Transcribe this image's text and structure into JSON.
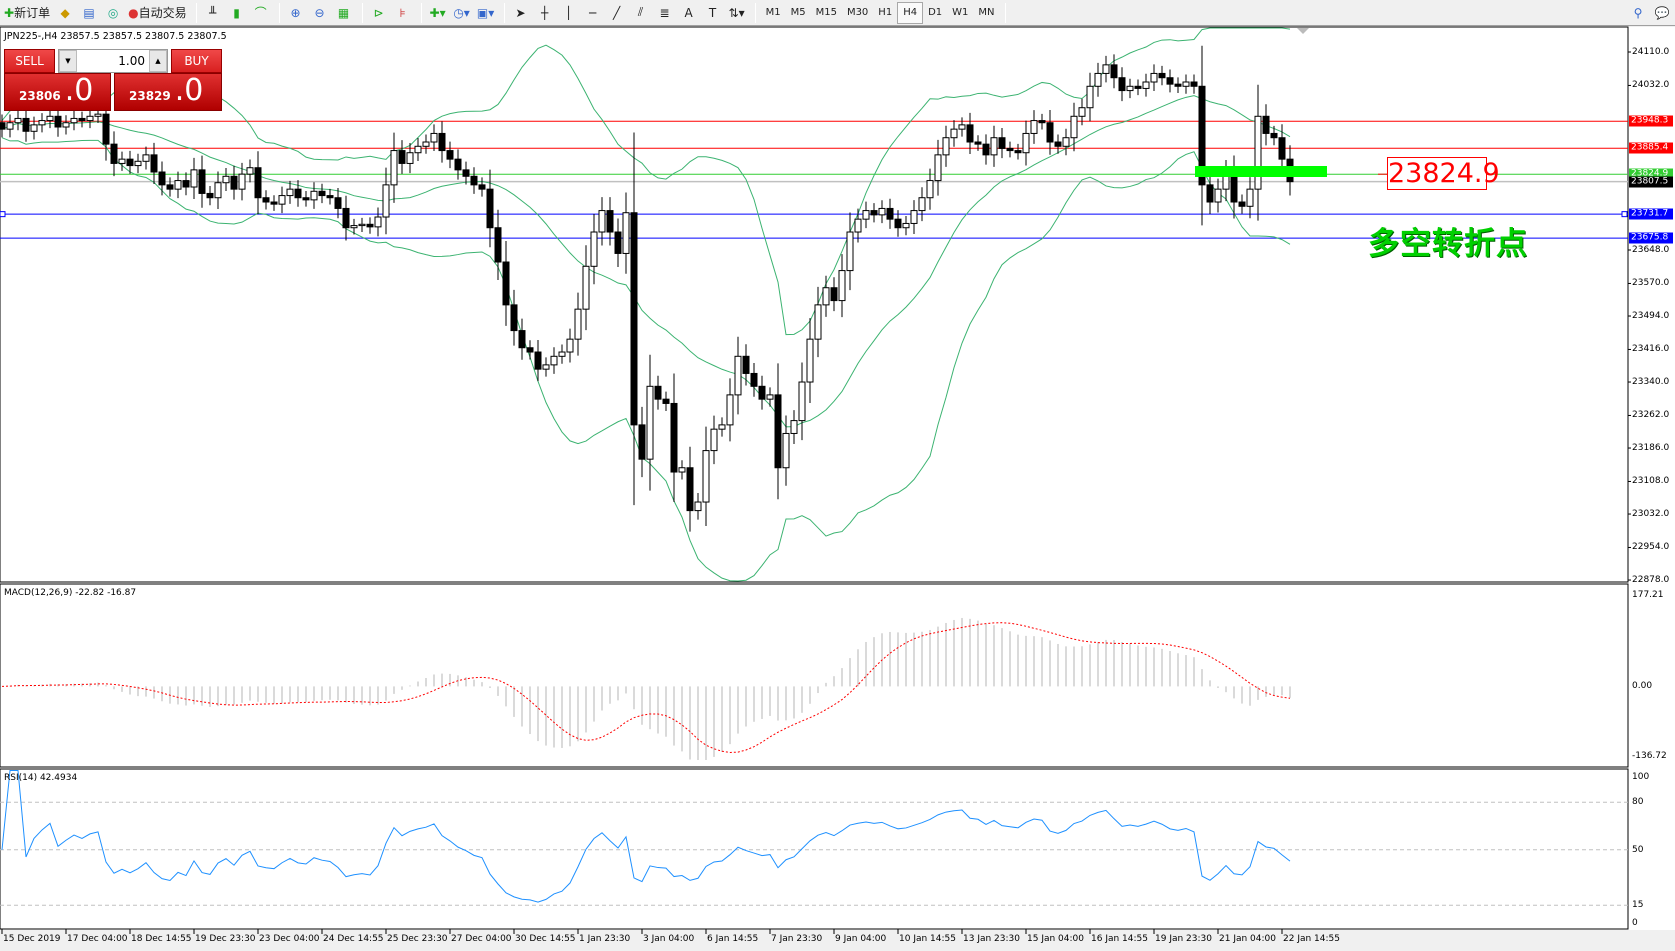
{
  "toolbar": {
    "new_order": "新订单",
    "auto_trading": "自动交易",
    "timeframes": [
      "M1",
      "M5",
      "M15",
      "M30",
      "H1",
      "H4",
      "D1",
      "W1",
      "MN"
    ],
    "active_timeframe": "H4"
  },
  "chart_header": "JPN225-,H4  23857.5 23857.5 23807.5 23807.5",
  "one_click": {
    "sell_label": "SELL",
    "buy_label": "BUY",
    "lot": "1.00",
    "sell_price_small": "23806",
    "sell_price_big": ".0",
    "buy_price_small": "23829",
    "buy_price_big": ".0"
  },
  "annotation": {
    "price_box": "23824.9",
    "text": "多空转折点"
  },
  "colors": {
    "bull_body": "#ffffff",
    "bear_body": "#000000",
    "bands": "#3cb371",
    "resistance": "#ff0000",
    "pivot": "#32cd32",
    "support": "#0000ff",
    "macd_hist": "#c0c0c0",
    "macd_signal": "#ff0000",
    "rsi": "#1e90ff",
    "highlight_bar": "#00ff00"
  },
  "chart_data": [
    {
      "type": "candlestick",
      "symbol": "JPN225-",
      "timeframe": "H4",
      "ylim": [
        22878.0,
        24110.0
      ],
      "y_ticks": [
        "24110.0",
        "24032.0",
        "23648.0",
        "23570.0",
        "23494.0",
        "23416.0",
        "23340.0",
        "23262.0",
        "23186.0",
        "23108.0",
        "23032.0",
        "22954.0",
        "22878.0"
      ],
      "x_tick_labels": [
        "15 Dec 2019",
        "17 Dec 04:00",
        "18 Dec 14:55",
        "19 Dec 23:30",
        "23 Dec 04:00",
        "24 Dec 14:55",
        "25 Dec 23:30",
        "27 Dec 04:00",
        "30 Dec 14:55",
        "1 Jan 23:30",
        "3 Jan 04:00",
        "6 Jan 14:55",
        "7 Jan 23:30",
        "9 Jan 04:00",
        "10 Jan 14:55",
        "13 Jan 23:30",
        "15 Jan 04:00",
        "16 Jan 14:55",
        "19 Jan 23:30",
        "21 Jan 04:00",
        "22 Jan 14:55"
      ],
      "close": [
        23930,
        23945,
        23955,
        23925,
        23940,
        23950,
        23960,
        23935,
        23945,
        23955,
        23950,
        23960,
        23965,
        23895,
        23850,
        23860,
        23845,
        23855,
        23870,
        23830,
        23800,
        23790,
        23810,
        23795,
        23835,
        23780,
        23770,
        23805,
        23820,
        23790,
        23825,
        23840,
        23770,
        23760,
        23755,
        23775,
        23790,
        23770,
        23765,
        23785,
        23775,
        23770,
        23745,
        23700,
        23705,
        23708,
        23702,
        23725,
        23800,
        23880,
        23850,
        23875,
        23890,
        23900,
        23920,
        23880,
        23860,
        23835,
        23820,
        23800,
        23790,
        23700,
        23620,
        23520,
        23460,
        23420,
        23410,
        23370,
        23380,
        23400,
        23410,
        23440,
        23510,
        23610,
        23690,
        23740,
        23690,
        23640,
        23735,
        23240,
        23160,
        23330,
        23300,
        23290,
        23130,
        23140,
        23040,
        23060,
        23180,
        23230,
        23240,
        23310,
        23400,
        23360,
        23330,
        23300,
        23310,
        23140,
        23220,
        23250,
        23340,
        23440,
        23520,
        23560,
        23530,
        23600,
        23690,
        23720,
        23740,
        23730,
        23745,
        23720,
        23700,
        23710,
        23740,
        23770,
        23810,
        23870,
        23910,
        23930,
        23940,
        23900,
        23895,
        23870,
        23910,
        23885,
        23880,
        23875,
        23920,
        23950,
        23945,
        23900,
        23890,
        23910,
        23960,
        23980,
        24030,
        24060,
        24080,
        24050,
        24020,
        24030,
        24025,
        24040,
        24060,
        24050,
        24035,
        24030,
        24040,
        24030,
        23800,
        23760,
        23790,
        23830,
        23760,
        23750,
        23790,
        23960,
        23920,
        23910,
        23860,
        23807.5
      ],
      "horizontal_lines": [
        {
          "price": "23948.3",
          "color": "#ff0000"
        },
        {
          "price": "23885.4",
          "color": "#ff0000"
        },
        {
          "price": "23824.9",
          "color": "#32cd32"
        },
        {
          "price": "23807.5",
          "color": "#000000"
        },
        {
          "price": "23731.7",
          "color": "#0000ff"
        },
        {
          "price": "23675.8",
          "color": "#0000ff"
        }
      ]
    },
    {
      "type": "histogram+line",
      "label": "MACD(12,26,9) -22.82 -16.87",
      "ylim": [
        -136.72,
        177.21
      ],
      "y_ticks": [
        "177.21",
        "0.00",
        "-136.72"
      ]
    },
    {
      "type": "line",
      "label": "RSI(14) 42.4934",
      "ylim": [
        0,
        100
      ],
      "y_ticks": [
        "100",
        "80",
        "50",
        "15",
        "0"
      ],
      "levels": [
        80,
        50,
        15
      ]
    }
  ]
}
